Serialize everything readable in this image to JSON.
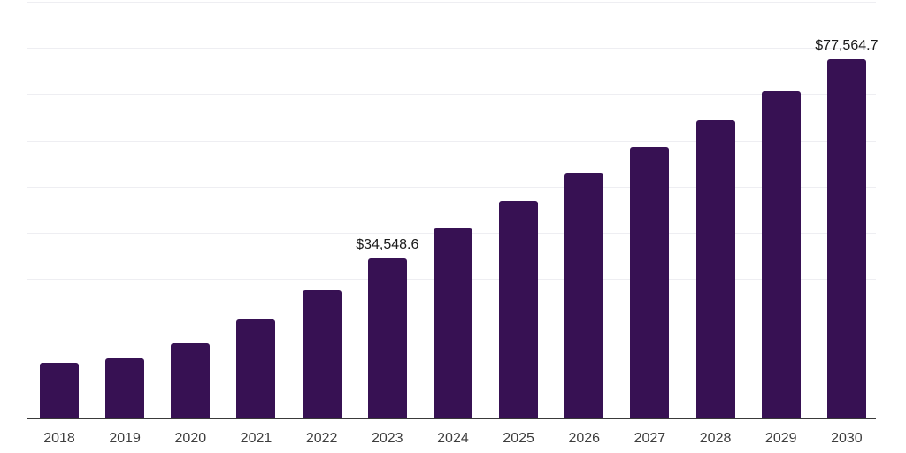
{
  "chart_data": {
    "type": "bar",
    "title": "",
    "xlabel": "",
    "ylabel": "",
    "categories": [
      "2018",
      "2019",
      "2020",
      "2021",
      "2022",
      "2023",
      "2024",
      "2025",
      "2026",
      "2027",
      "2028",
      "2029",
      "2030"
    ],
    "values": [
      11900,
      12850,
      16050,
      21250,
      27500,
      34548.6,
      40900,
      46950,
      52850,
      58600,
      64350,
      70600,
      77564.7
    ],
    "data_labels": [
      "",
      "",
      "",
      "",
      "",
      "$34,548.6",
      "",
      "",
      "",
      "",
      "",
      "",
      "$77,564.7"
    ],
    "ylim": [
      0,
      90000
    ],
    "gridline_step": 10000,
    "grid": "horizontal-light",
    "legend": "none",
    "bar_color": "#371153",
    "axis_line_color": "#3a3a3a",
    "gridline_color": "#eeeef2",
    "label_text_color": "#1a1a1a",
    "tick_text_color": "#3d3d3d"
  }
}
